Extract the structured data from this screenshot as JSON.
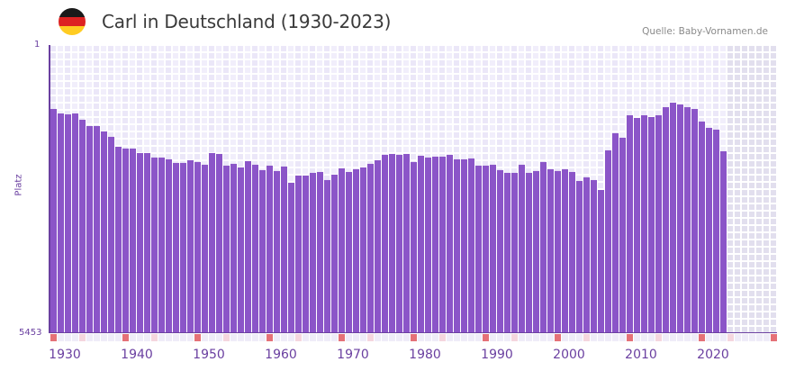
{
  "header": {
    "title": "Carl in Deutschland (1930-2023)",
    "source": "Quelle: Baby-Vornamen.de",
    "flag_colors": [
      "#1a1a1a",
      "#dd2222",
      "#ffcc22"
    ]
  },
  "colors": {
    "bar": "#8b55c8",
    "axis": "#6a3fa0",
    "grid_a": "#f1eefb",
    "grid_b": "#ebe7f8",
    "grid_future": "#e2dfee",
    "marker_decade": "#e57177",
    "marker_half": "#f5d6de",
    "marker_other": "#efecf8"
  },
  "chart_data": {
    "type": "bar",
    "title": "Carl in Deutschland (1930-2023)",
    "xlabel": "",
    "ylabel": "Platz",
    "y_axis_inverted": true,
    "ylim": [
      1,
      5453
    ],
    "y_tick_labels": [
      "1",
      "5453"
    ],
    "x_range": [
      1930,
      2030
    ],
    "x_tick_labels": [
      "1930",
      "1940",
      "1950",
      "1960",
      "1970",
      "1980",
      "1990",
      "2000",
      "2010",
      "2020"
    ],
    "grid": true,
    "legend": null,
    "categories": [
      1930,
      1931,
      1932,
      1933,
      1934,
      1935,
      1936,
      1937,
      1938,
      1939,
      1940,
      1941,
      1942,
      1943,
      1944,
      1945,
      1946,
      1947,
      1948,
      1949,
      1950,
      1951,
      1952,
      1953,
      1954,
      1955,
      1956,
      1957,
      1958,
      1959,
      1960,
      1961,
      1962,
      1963,
      1964,
      1965,
      1966,
      1967,
      1968,
      1969,
      1970,
      1971,
      1972,
      1973,
      1974,
      1975,
      1976,
      1977,
      1978,
      1979,
      1980,
      1981,
      1982,
      1983,
      1984,
      1985,
      1986,
      1987,
      1988,
      1989,
      1990,
      1991,
      1992,
      1993,
      1994,
      1995,
      1996,
      1997,
      1998,
      1999,
      2000,
      2001,
      2002,
      2003,
      2004,
      2005,
      2006,
      2007,
      2008,
      2009,
      2010,
      2011,
      2012,
      2013,
      2014,
      2015,
      2016,
      2017,
      2018,
      2019,
      2020,
      2021,
      2022,
      2023
    ],
    "values": [
      1211,
      1296,
      1313,
      1296,
      1415,
      1534,
      1534,
      1636,
      1738,
      1926,
      1960,
      1960,
      2045,
      2045,
      2130,
      2130,
      2164,
      2232,
      2232,
      2181,
      2215,
      2266,
      2045,
      2062,
      2283,
      2249,
      2317,
      2198,
      2266,
      2368,
      2283,
      2385,
      2300,
      2607,
      2471,
      2471,
      2420,
      2403,
      2556,
      2454,
      2334,
      2403,
      2351,
      2317,
      2249,
      2181,
      2079,
      2062,
      2079,
      2062,
      2215,
      2096,
      2130,
      2113,
      2113,
      2079,
      2164,
      2164,
      2147,
      2283,
      2283,
      2266,
      2368,
      2420,
      2420,
      2266,
      2420,
      2385,
      2215,
      2351,
      2385,
      2351,
      2403,
      2573,
      2505,
      2556,
      2744,
      1994,
      1670,
      1755,
      1330,
      1381,
      1330,
      1364,
      1330,
      1177,
      1092,
      1126,
      1177,
      1211,
      1449,
      1568,
      1602,
      2011
    ]
  }
}
